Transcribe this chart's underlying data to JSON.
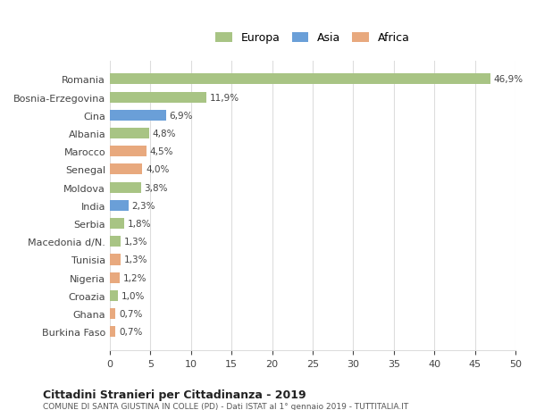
{
  "categories": [
    "Burkina Faso",
    "Ghana",
    "Croazia",
    "Nigeria",
    "Tunisia",
    "Macedonia d/N.",
    "Serbia",
    "India",
    "Moldova",
    "Senegal",
    "Marocco",
    "Albania",
    "Cina",
    "Bosnia-Erzegovina",
    "Romania"
  ],
  "values": [
    0.7,
    0.7,
    1.0,
    1.2,
    1.3,
    1.3,
    1.8,
    2.3,
    3.8,
    4.0,
    4.5,
    4.8,
    6.9,
    11.9,
    46.9
  ],
  "labels": [
    "0,7%",
    "0,7%",
    "1,0%",
    "1,2%",
    "1,3%",
    "1,3%",
    "1,8%",
    "2,3%",
    "3,8%",
    "4,0%",
    "4,5%",
    "4,8%",
    "6,9%",
    "11,9%",
    "46,9%"
  ],
  "colors": [
    "#e8a97e",
    "#e8a97e",
    "#a8c484",
    "#e8a97e",
    "#e8a97e",
    "#a8c484",
    "#a8c484",
    "#6a9fd8",
    "#a8c484",
    "#e8a97e",
    "#e8a97e",
    "#a8c484",
    "#6a9fd8",
    "#a8c484",
    "#a8c484"
  ],
  "continent": [
    "Africa",
    "Africa",
    "Europa",
    "Africa",
    "Africa",
    "Europa",
    "Europa",
    "Asia",
    "Europa",
    "Africa",
    "Africa",
    "Europa",
    "Asia",
    "Europa",
    "Europa"
  ],
  "legend": {
    "Europa": "#a8c484",
    "Asia": "#6a9fd8",
    "Africa": "#e8a97e"
  },
  "xlim": [
    0,
    50
  ],
  "xticks": [
    0,
    5,
    10,
    15,
    20,
    25,
    30,
    35,
    40,
    45,
    50
  ],
  "title": "Cittadini Stranieri per Cittadinanza - 2019",
  "subtitle": "COMUNE DI SANTA GIUSTINA IN COLLE (PD) - Dati ISTAT al 1° gennaio 2019 - TUTTITALIA.IT",
  "bg_color": "#ffffff",
  "grid_color": "#dddddd",
  "bar_height": 0.6
}
